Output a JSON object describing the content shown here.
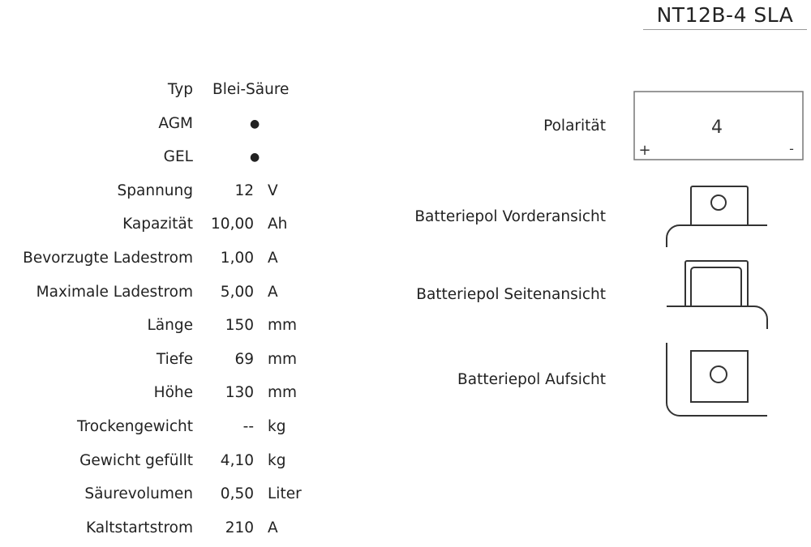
{
  "title": "NT12B-4 SLA",
  "specs": [
    {
      "label": "Typ",
      "value": "Blei-Säure",
      "unit": ""
    },
    {
      "label": "AGM",
      "value": "●",
      "unit": ""
    },
    {
      "label": "GEL",
      "value": "●",
      "unit": ""
    },
    {
      "label": "Spannung",
      "value": "12",
      "unit": "V"
    },
    {
      "label": "Kapazität",
      "value": "10,00",
      "unit": "Ah"
    },
    {
      "label": "Bevorzugte Ladestrom",
      "value": "1,00",
      "unit": "A"
    },
    {
      "label": "Maximale Ladestrom",
      "value": "5,00",
      "unit": "A"
    },
    {
      "label": "Länge",
      "value": "150",
      "unit": "mm"
    },
    {
      "label": "Tiefe",
      "value": "69",
      "unit": "mm"
    },
    {
      "label": "Höhe",
      "value": "130",
      "unit": "mm"
    },
    {
      "label": "Trockengewicht",
      "value": "--",
      "unit": "kg"
    },
    {
      "label": "Gewicht gefüllt",
      "value": "4,10",
      "unit": "kg"
    },
    {
      "label": "Säurevolumen",
      "value": "0,50",
      "unit": "Liter"
    },
    {
      "label": "Kaltstartstrom",
      "value": "210",
      "unit": "A"
    }
  ],
  "diagrams": {
    "polarity_label": "Polarität",
    "polarity_value": "4",
    "plus": "+",
    "minus": "-",
    "front_label": "Batteriepol Vorderansicht",
    "side_label": "Batteriepol Seitenansicht",
    "top_label": "Batteriepol Aufsicht"
  }
}
